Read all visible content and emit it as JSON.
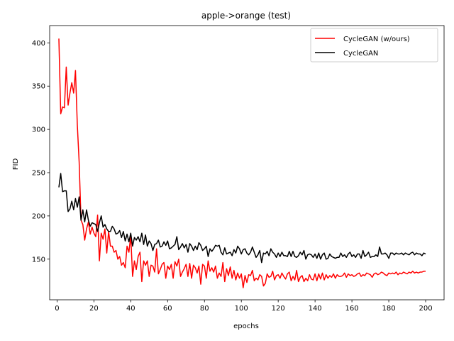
{
  "chart_data": {
    "type": "line",
    "title": "apple->orange (test)",
    "xlabel": "epochs",
    "ylabel": "FID",
    "xlim": [
      -4,
      210
    ],
    "ylim": [
      103,
      420
    ],
    "xticks": [
      0,
      20,
      40,
      60,
      80,
      100,
      120,
      140,
      160,
      180,
      200
    ],
    "yticks": [
      150,
      200,
      250,
      300,
      350,
      400
    ],
    "grid": false,
    "legend_position": "top-right",
    "series": [
      {
        "name": "CycleGAN (w/ours)",
        "color": "#ff0000",
        "x": [
          1,
          2,
          3,
          4,
          5,
          6,
          7,
          8,
          9,
          10,
          11,
          12,
          13,
          14,
          15,
          16,
          17,
          18,
          19,
          20,
          21,
          22,
          23,
          24,
          25,
          26,
          27,
          28,
          29,
          30,
          31,
          32,
          33,
          34,
          35,
          36,
          37,
          38,
          39,
          40,
          41,
          42,
          43,
          44,
          45,
          46,
          47,
          48,
          49,
          50,
          51,
          52,
          53,
          54,
          55,
          56,
          57,
          58,
          59,
          60,
          61,
          62,
          63,
          64,
          65,
          66,
          67,
          68,
          69,
          70,
          71,
          72,
          73,
          74,
          75,
          76,
          77,
          78,
          79,
          80,
          81,
          82,
          83,
          84,
          85,
          86,
          87,
          88,
          89,
          90,
          91,
          92,
          93,
          94,
          95,
          96,
          97,
          98,
          99,
          100,
          101,
          102,
          103,
          104,
          105,
          106,
          107,
          108,
          109,
          110,
          111,
          112,
          113,
          114,
          115,
          116,
          117,
          118,
          119,
          120,
          121,
          122,
          123,
          124,
          125,
          126,
          127,
          128,
          129,
          130,
          131,
          132,
          133,
          134,
          135,
          136,
          137,
          138,
          139,
          140,
          141,
          142,
          143,
          144,
          145,
          146,
          147,
          148,
          149,
          150,
          151,
          152,
          153,
          154,
          155,
          156,
          157,
          158,
          159,
          160,
          161,
          162,
          163,
          164,
          165,
          166,
          167,
          168,
          169,
          170,
          171,
          172,
          173,
          174,
          175,
          176,
          177,
          178,
          179,
          180,
          181,
          182,
          183,
          184,
          185,
          186,
          187,
          188,
          189,
          190,
          191,
          192,
          193,
          194,
          195,
          196,
          197,
          198,
          199,
          200
        ],
        "y": [
          405,
          318,
          326,
          325,
          372,
          328,
          342,
          354,
          342,
          368,
          305,
          262,
          195,
          190,
          172,
          185,
          193,
          179,
          187,
          180,
          176,
          201,
          148,
          180,
          173,
          185,
          157,
          182,
          165,
          165,
          158,
          160,
          150,
          153,
          143,
          146,
          140,
          165,
          158,
          177,
          130,
          148,
          138,
          153,
          158,
          124,
          148,
          143,
          148,
          130,
          143,
          142,
          135,
          162,
          133,
          138,
          144,
          146,
          128,
          142,
          138,
          144,
          128,
          147,
          142,
          150,
          130,
          135,
          139,
          144,
          130,
          145,
          128,
          143,
          140,
          134,
          142,
          121,
          144,
          142,
          128,
          148,
          136,
          140,
          135,
          142,
          128,
          134,
          130,
          146,
          124,
          139,
          131,
          141,
          128,
          137,
          126,
          134,
          128,
          133,
          117,
          131,
          123,
          132,
          131,
          137,
          125,
          128,
          126,
          132,
          130,
          119,
          122,
          133,
          129,
          130,
          136,
          126,
          131,
          132,
          128,
          134,
          130,
          127,
          133,
          135,
          125,
          130,
          126,
          137,
          124,
          129,
          131,
          124,
          128,
          125,
          132,
          127,
          126,
          133,
          125,
          133,
          127,
          134,
          126,
          132,
          128,
          131,
          129,
          133,
          128,
          132,
          130,
          130,
          131,
          134,
          129,
          133,
          131,
          132,
          130,
          131,
          133,
          134,
          130,
          132,
          131,
          134,
          133,
          132,
          129,
          133,
          134,
          132,
          133,
          135,
          134,
          132,
          131,
          134,
          133,
          134,
          133,
          135,
          132,
          134,
          133,
          135,
          134,
          133,
          135,
          134,
          136,
          134,
          135,
          134,
          135,
          135,
          136,
          136
        ]
      },
      {
        "name": "CycleGAN",
        "color": "#000000",
        "x": [
          1,
          2,
          3,
          4,
          5,
          6,
          7,
          8,
          9,
          10,
          11,
          12,
          13,
          14,
          15,
          16,
          17,
          18,
          19,
          20,
          21,
          22,
          23,
          24,
          25,
          26,
          27,
          28,
          29,
          30,
          31,
          32,
          33,
          34,
          35,
          36,
          37,
          38,
          39,
          40,
          41,
          42,
          43,
          44,
          45,
          46,
          47,
          48,
          49,
          50,
          51,
          52,
          53,
          54,
          55,
          56,
          57,
          58,
          59,
          60,
          61,
          62,
          63,
          64,
          65,
          66,
          67,
          68,
          69,
          70,
          71,
          72,
          73,
          74,
          75,
          76,
          77,
          78,
          79,
          80,
          81,
          82,
          83,
          84,
          85,
          86,
          87,
          88,
          89,
          90,
          91,
          92,
          93,
          94,
          95,
          96,
          97,
          98,
          99,
          100,
          101,
          102,
          103,
          104,
          105,
          106,
          107,
          108,
          109,
          110,
          111,
          112,
          113,
          114,
          115,
          116,
          117,
          118,
          119,
          120,
          121,
          122,
          123,
          124,
          125,
          126,
          127,
          128,
          129,
          130,
          131,
          132,
          133,
          134,
          135,
          136,
          137,
          138,
          139,
          140,
          141,
          142,
          143,
          144,
          145,
          146,
          147,
          148,
          149,
          150,
          151,
          152,
          153,
          154,
          155,
          156,
          157,
          158,
          159,
          160,
          161,
          162,
          163,
          164,
          165,
          166,
          167,
          168,
          169,
          170,
          171,
          172,
          173,
          174,
          175,
          176,
          177,
          178,
          179,
          180,
          181,
          182,
          183,
          184,
          185,
          186,
          187,
          188,
          189,
          190,
          191,
          192,
          193,
          194,
          195,
          196,
          197,
          198,
          199,
          200
        ],
        "y": [
          233,
          249,
          228,
          229,
          229,
          205,
          208,
          217,
          207,
          220,
          210,
          222,
          195,
          207,
          193,
          207,
          195,
          188,
          192,
          191,
          190,
          182,
          192,
          200,
          187,
          190,
          185,
          182,
          182,
          188,
          185,
          179,
          180,
          183,
          175,
          182,
          171,
          179,
          170,
          180,
          165,
          175,
          172,
          176,
          170,
          180,
          167,
          178,
          165,
          171,
          168,
          160,
          167,
          168,
          172,
          164,
          165,
          170,
          166,
          171,
          162,
          163,
          165,
          167,
          176,
          161,
          164,
          168,
          163,
          167,
          158,
          168,
          165,
          160,
          165,
          161,
          169,
          166,
          160,
          162,
          165,
          153,
          162,
          159,
          162,
          166,
          165,
          166,
          158,
          155,
          163,
          156,
          157,
          158,
          154,
          161,
          157,
          165,
          162,
          156,
          161,
          162,
          157,
          155,
          158,
          164,
          158,
          152,
          155,
          160,
          146,
          157,
          156,
          159,
          154,
          162,
          158,
          156,
          152,
          157,
          153,
          158,
          154,
          154,
          153,
          159,
          153,
          159,
          153,
          152,
          154,
          158,
          155,
          160,
          150,
          155,
          156,
          155,
          152,
          156,
          151,
          157,
          150,
          155,
          157,
          150,
          151,
          156,
          153,
          152,
          151,
          152,
          152,
          157,
          153,
          155,
          152,
          156,
          158,
          153,
          155,
          152,
          156,
          156,
          151,
          160,
          153,
          155,
          158,
          152,
          153,
          153,
          155,
          153,
          164,
          156,
          156,
          157,
          155,
          151,
          157,
          157,
          155,
          157,
          156,
          156,
          157,
          155,
          157,
          156,
          155,
          157,
          158,
          155,
          157,
          156,
          156,
          154,
          157,
          156
        ]
      }
    ]
  }
}
